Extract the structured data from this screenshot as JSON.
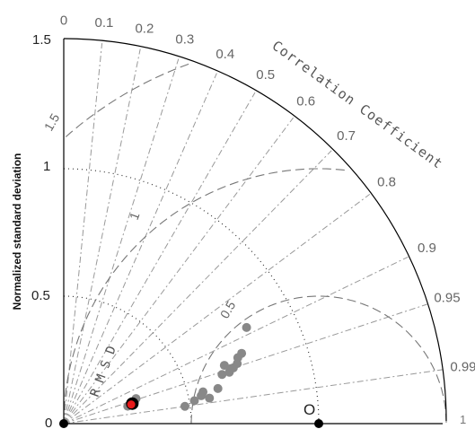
{
  "chart_data": {
    "type": "taylor",
    "ylabel": "Normalized standard deviation",
    "correlation_label": "Correlation Coefficient",
    "rmsd_label": "R M S D",
    "std_range": [
      0,
      1.5
    ],
    "std_ticks": [
      "0",
      "0.5",
      "1",
      "1.5"
    ],
    "x_end_label": "1",
    "correlation_ticks": [
      "0",
      "0.1",
      "0.2",
      "0.3",
      "0.4",
      "0.5",
      "0.6",
      "0.7",
      "0.8",
      "0.9",
      "0.95",
      "0.99"
    ],
    "rmsd_ticks": [
      "0.5",
      "1",
      "1.5"
    ],
    "reference": {
      "label": "O",
      "std": 1.0,
      "corr": 1.0
    },
    "models": [
      {
        "std": 0.48,
        "corr": 0.99
      },
      {
        "std": 0.52,
        "corr": 0.985
      },
      {
        "std": 0.55,
        "corr": 0.98
      },
      {
        "std": 0.58,
        "corr": 0.985
      },
      {
        "std": 0.56,
        "corr": 0.975
      },
      {
        "std": 0.62,
        "corr": 0.975
      },
      {
        "std": 0.65,
        "corr": 0.955
      },
      {
        "std": 0.68,
        "corr": 0.955
      },
      {
        "std": 0.69,
        "corr": 0.95
      },
      {
        "std": 0.7,
        "corr": 0.95
      },
      {
        "std": 0.72,
        "corr": 0.945
      },
      {
        "std": 0.67,
        "corr": 0.94
      },
      {
        "std": 0.73,
        "corr": 0.935
      },
      {
        "std": 0.75,
        "corr": 0.93
      },
      {
        "std": 0.81,
        "corr": 0.885
      },
      {
        "std": 0.3,
        "corr": 0.945
      },
      {
        "std": 0.29,
        "corr": 0.955
      },
      {
        "std": 0.28,
        "corr": 0.96
      },
      {
        "std": 0.26,
        "corr": 0.965
      }
    ],
    "ensemble": [
      {
        "std": 0.28,
        "corr": 0.96
      }
    ],
    "best": {
      "std": 0.275,
      "corr": 0.962
    },
    "colors": {
      "models": "#888888",
      "ensemble": "#000000",
      "best": "#e8191a",
      "reference": "#000000"
    },
    "grid": true
  }
}
